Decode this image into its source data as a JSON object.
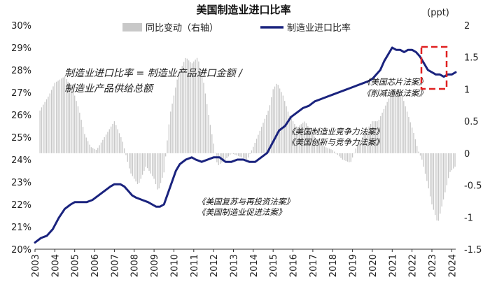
{
  "chart_data": {
    "type": "bar+line",
    "title": "美国制造业进口比率",
    "right_axis_unit": "(ppt)",
    "legend": {
      "bar_label": "同比变动（右轴）",
      "line_label": "制造业进口比率"
    },
    "formula_lines": [
      "制造业进口比率 = 制造业产品进口金额 /",
      "制造业产品供给总额"
    ],
    "annotations": [
      "《美国复苏与再投资法案》",
      "《美国制造业促进法案》",
      "《美国制造业竞争力法案》",
      "《美国创新与竞争力法案》",
      "《美国芯片法案》",
      "《削减通胀法案》"
    ],
    "x_tick_labels": [
      "2003",
      "2004",
      "2005",
      "2006",
      "2007",
      "2008",
      "2009",
      "2010",
      "2011",
      "2012",
      "2013",
      "2014",
      "2015",
      "2016",
      "2017",
      "2018",
      "2019",
      "2020",
      "2021",
      "2022",
      "2023",
      "2024"
    ],
    "y_left": {
      "tick_labels": [
        "20%",
        "21%",
        "22%",
        "23%",
        "24%",
        "25%",
        "26%",
        "27%",
        "28%",
        "29%",
        "30%"
      ],
      "ylim": [
        20,
        30
      ]
    },
    "y_right": {
      "tick_labels": [
        "-1.5",
        "-1",
        "-0.5",
        "0",
        "0.5",
        "1",
        "1.5",
        "2"
      ],
      "ylim": [
        -1.5,
        2
      ]
    },
    "x_range": [
      2003.0,
      2024.2
    ],
    "colors": {
      "line": "#1a237e",
      "bars": "#c8c8c8",
      "highlight_box": "#e02020"
    },
    "series": [
      {
        "name": "制造业进口比率",
        "axis": "left",
        "x": [
          2003.0,
          2003.3,
          2003.6,
          2003.9,
          2004.2,
          2004.5,
          2004.8,
          2005.0,
          2005.3,
          2005.6,
          2005.9,
          2006.2,
          2006.5,
          2006.8,
          2007.0,
          2007.3,
          2007.5,
          2007.7,
          2007.9,
          2008.1,
          2008.4,
          2008.7,
          2008.9,
          2009.1,
          2009.3,
          2009.5,
          2009.7,
          2009.9,
          2010.1,
          2010.3,
          2010.6,
          2010.9,
          2011.1,
          2011.4,
          2011.7,
          2012.0,
          2012.3,
          2012.6,
          2012.9,
          2013.2,
          2013.5,
          2013.8,
          2014.1,
          2014.4,
          2014.7,
          2015.0,
          2015.3,
          2015.6,
          2015.9,
          2016.2,
          2016.5,
          2016.8,
          2017.1,
          2017.4,
          2017.7,
          2018.0,
          2018.3,
          2018.6,
          2018.9,
          2019.2,
          2019.5,
          2019.8,
          2020.0,
          2020.2,
          2020.4,
          2020.6,
          2020.8,
          2021.0,
          2021.2,
          2021.4,
          2021.6,
          2021.8,
          2022.0,
          2022.2,
          2022.4,
          2022.6,
          2022.8,
          2023.0,
          2023.2,
          2023.4,
          2023.6,
          2023.8,
          2024.0,
          2024.2
        ],
        "values": [
          20.3,
          20.5,
          20.6,
          20.9,
          21.4,
          21.8,
          22.0,
          22.1,
          22.1,
          22.1,
          22.2,
          22.4,
          22.6,
          22.8,
          22.9,
          22.9,
          22.8,
          22.6,
          22.4,
          22.3,
          22.2,
          22.1,
          22.0,
          21.9,
          21.9,
          22.0,
          22.5,
          23.0,
          23.5,
          23.8,
          24.0,
          24.1,
          24.0,
          23.9,
          24.0,
          24.1,
          24.1,
          23.9,
          23.9,
          24.0,
          24.0,
          23.9,
          23.9,
          24.1,
          24.3,
          24.8,
          25.3,
          25.5,
          25.9,
          26.1,
          26.3,
          26.4,
          26.6,
          26.7,
          26.8,
          26.9,
          27.0,
          27.1,
          27.2,
          27.3,
          27.4,
          27.5,
          27.6,
          27.8,
          28.0,
          28.4,
          28.7,
          29.0,
          28.9,
          28.9,
          28.8,
          28.9,
          28.9,
          28.8,
          28.6,
          28.3,
          28.0,
          27.9,
          27.8,
          27.8,
          27.7,
          27.8,
          27.8,
          27.9
        ]
      },
      {
        "name": "同比变动（右轴）",
        "axis": "right",
        "type": "bar",
        "knots_x": [
          2003.0,
          2003.3,
          2003.7,
          2004.0,
          2004.5,
          2004.9,
          2005.2,
          2005.5,
          2005.8,
          2006.1,
          2006.6,
          2007.0,
          2007.4,
          2007.8,
          2008.2,
          2008.6,
          2009.0,
          2009.2,
          2009.5,
          2009.8,
          2010.2,
          2010.6,
          2010.9,
          2011.2,
          2011.5,
          2011.8,
          2012.2,
          2012.6,
          2012.9,
          2013.3,
          2013.7,
          2014.0,
          2014.4,
          2014.8,
          2015.0,
          2015.2,
          2015.5,
          2015.8,
          2016.2,
          2016.6,
          2016.9,
          2017.2,
          2017.6,
          2018.0,
          2018.5,
          2018.9,
          2019.2,
          2019.6,
          2020.0,
          2020.3,
          2020.6,
          2020.9,
          2021.2,
          2021.5,
          2021.8,
          2022.1,
          2022.3,
          2022.5,
          2022.8,
          2023.0,
          2023.3,
          2023.6,
          2023.9,
          2024.2
        ],
        "knots_y": [
          0.5,
          0.7,
          0.9,
          1.1,
          1.2,
          1.0,
          0.7,
          0.3,
          0.1,
          0.05,
          0.3,
          0.5,
          0.2,
          -0.3,
          -0.5,
          -0.2,
          -0.4,
          -0.6,
          -0.3,
          0.6,
          1.2,
          1.5,
          1.4,
          1.5,
          1.1,
          0.5,
          -0.2,
          -0.1,
          0.0,
          -0.05,
          -0.1,
          0.1,
          0.4,
          0.7,
          1.0,
          1.1,
          0.9,
          0.6,
          0.4,
          0.5,
          0.35,
          0.2,
          0.1,
          0.05,
          -0.1,
          -0.15,
          0.1,
          0.3,
          0.5,
          0.5,
          0.7,
          0.9,
          1.0,
          0.9,
          0.6,
          0.3,
          0.05,
          -0.1,
          -0.5,
          -0.8,
          -1.1,
          -0.7,
          -0.3,
          -0.2
        ]
      }
    ]
  }
}
